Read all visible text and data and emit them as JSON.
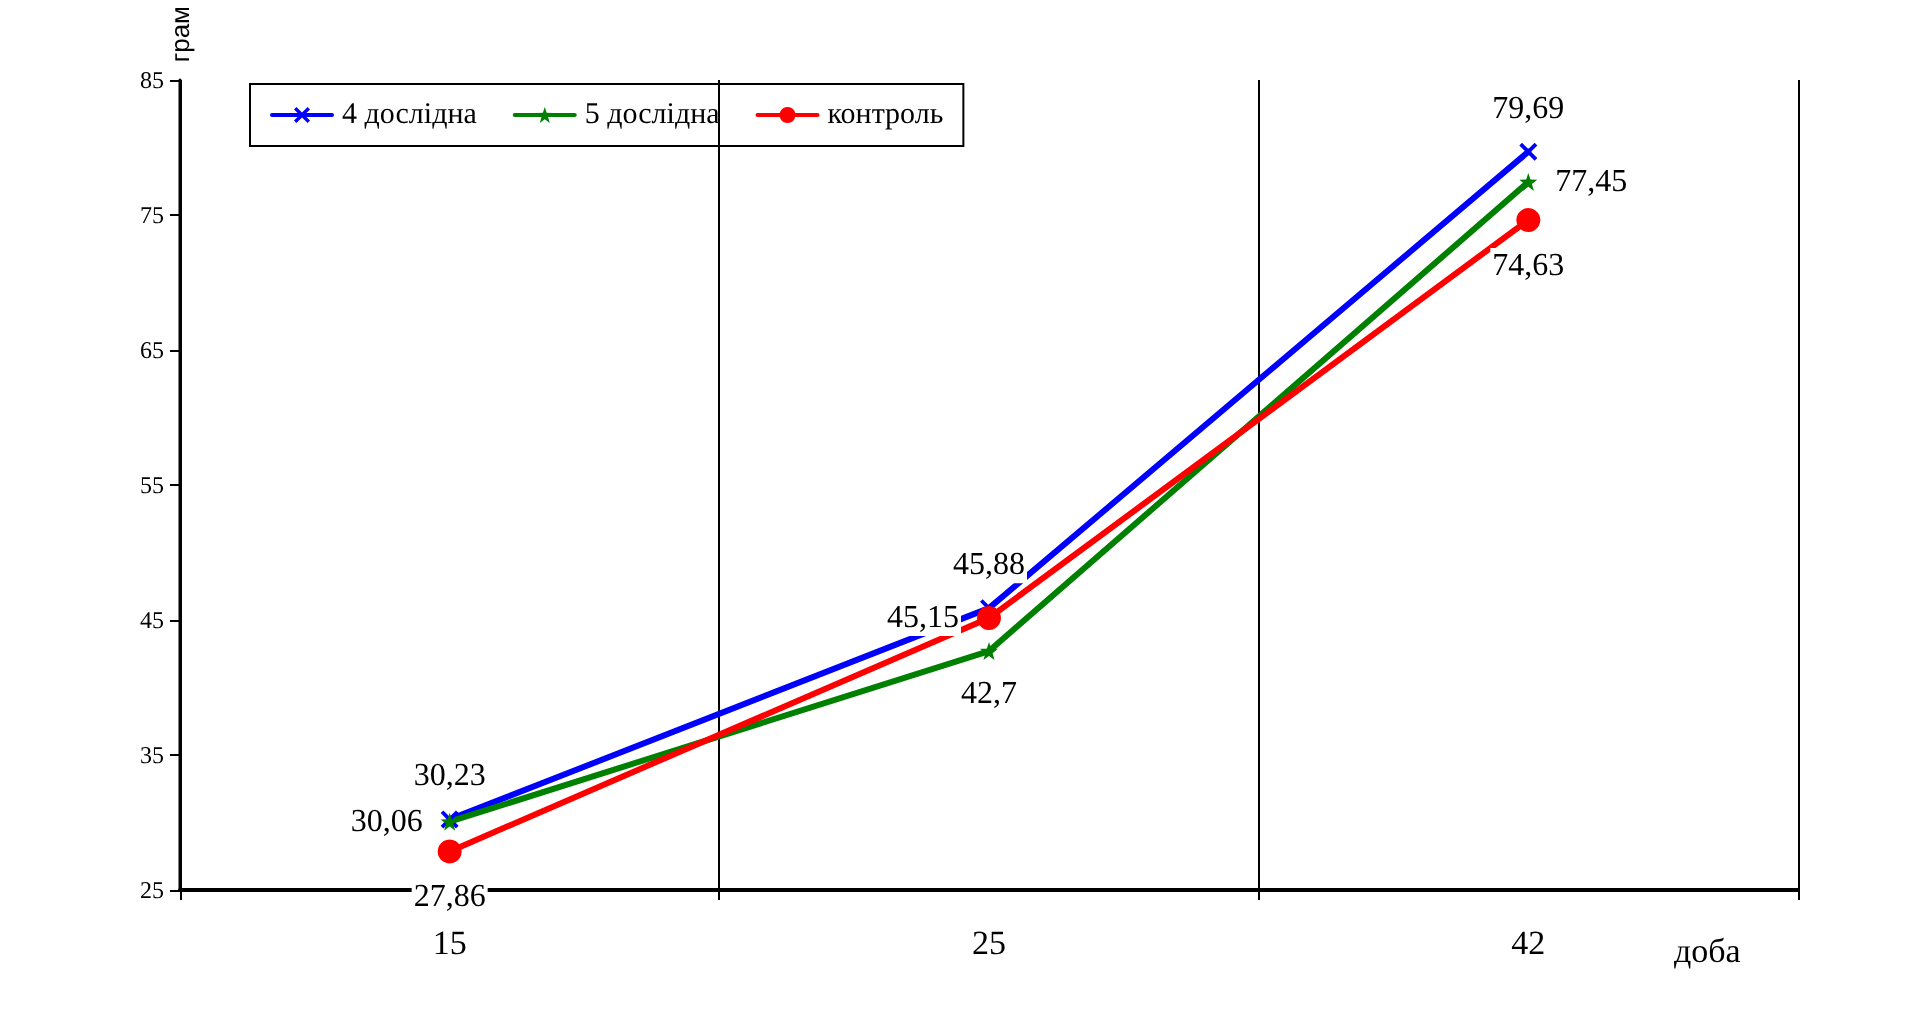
{
  "chart_data": {
    "type": "line",
    "categories": [
      "15",
      "25",
      "42"
    ],
    "xlabel": "доба",
    "ylabel": "грам",
    "ylim": [
      25,
      85
    ],
    "yticks": [
      25,
      35,
      45,
      55,
      65,
      75,
      85
    ],
    "grid": "x",
    "legend": "top left",
    "series": [
      {
        "name": "4 дослідна",
        "color": "#0000ff",
        "marker": "cross",
        "values": [
          30.23,
          45.88,
          79.69
        ],
        "value_labels": [
          "30,23",
          "45,88",
          "79,69"
        ]
      },
      {
        "name": "5 дослідна",
        "color": "#008000",
        "marker": "star",
        "values": [
          30.06,
          42.7,
          77.45
        ],
        "value_labels": [
          "30,06",
          "42,7",
          "77,45"
        ]
      },
      {
        "name": "контроль",
        "color": "#ff0000",
        "marker": "circle",
        "values": [
          27.86,
          45.15,
          74.63
        ],
        "value_labels": [
          "27,86",
          "45,15",
          "74,63"
        ]
      }
    ]
  }
}
